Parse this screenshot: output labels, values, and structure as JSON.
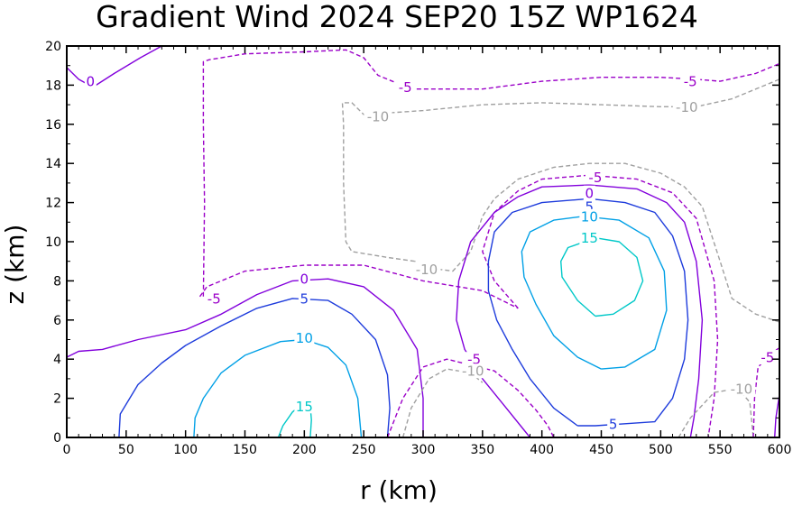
{
  "chart_data": {
    "type": "contour",
    "title": "Gradient Wind 2024 SEP20 15Z  WP1624",
    "xlabel": "r (km)",
    "ylabel": "z (km)",
    "xlim": [
      0,
      600
    ],
    "ylim": [
      0,
      20
    ],
    "x_ticks": [
      0,
      50,
      100,
      150,
      200,
      250,
      300,
      350,
      400,
      450,
      500,
      550,
      600
    ],
    "y_ticks": [
      0,
      2,
      4,
      6,
      8,
      10,
      12,
      14,
      16,
      18,
      20
    ],
    "grid": false,
    "levels": [
      {
        "value": -10,
        "label": "-10",
        "color": "#a0a0a0",
        "style": "dashed"
      },
      {
        "value": -5,
        "label": "-5",
        "color": "#9b00c8",
        "style": "dashed"
      },
      {
        "value": 0,
        "label": "0",
        "color": "#8200dc",
        "style": "solid"
      },
      {
        "value": 5,
        "label": "5",
        "color": "#1e3cdc",
        "style": "solid"
      },
      {
        "value": 10,
        "label": "10",
        "color": "#00a0e6",
        "style": "solid"
      },
      {
        "value": 15,
        "label": "15",
        "color": "#00c8c8",
        "style": "solid"
      }
    ],
    "contours": [
      {
        "level": 0,
        "points": [
          [
            0,
            18.9
          ],
          [
            10,
            18.3
          ],
          [
            22,
            17.9
          ],
          [
            40,
            18.6
          ],
          [
            62,
            19.4
          ],
          [
            80,
            20
          ]
        ]
      },
      {
        "level": -5,
        "points": [
          [
            115,
            7.2
          ],
          [
            116,
            12
          ],
          [
            115,
            16
          ],
          [
            115,
            19.2
          ],
          [
            120,
            19.3
          ],
          [
            150,
            19.6
          ],
          [
            200,
            19.7
          ],
          [
            235,
            19.8
          ],
          [
            250,
            19.4
          ],
          [
            262,
            18.5
          ],
          [
            290,
            17.8
          ],
          [
            350,
            17.8
          ],
          [
            400,
            18.2
          ],
          [
            450,
            18.4
          ],
          [
            500,
            18.4
          ],
          [
            530,
            18.3
          ],
          [
            550,
            18.2
          ],
          [
            580,
            18.6
          ],
          [
            600,
            19.1
          ]
        ]
      },
      {
        "level": -10,
        "points": [
          [
            293,
            9
          ],
          [
            270,
            9.2
          ],
          [
            240,
            9.5
          ],
          [
            235,
            10
          ],
          [
            233,
            13
          ],
          [
            233,
            16
          ],
          [
            232,
            17.1
          ],
          [
            240,
            17.1
          ],
          [
            250,
            16.5
          ],
          [
            300,
            16.7
          ],
          [
            350,
            17
          ],
          [
            400,
            17.1
          ],
          [
            450,
            17
          ],
          [
            500,
            16.9
          ],
          [
            530,
            16.9
          ],
          [
            560,
            17.3
          ],
          [
            600,
            18.3
          ]
        ]
      },
      {
        "level": -10,
        "points": [
          [
            600,
            5.9
          ],
          [
            580,
            6.3
          ],
          [
            560,
            7.1
          ],
          [
            550,
            9
          ],
          [
            535,
            11.8
          ],
          [
            520,
            12.8
          ],
          [
            500,
            13.5
          ],
          [
            470,
            14
          ],
          [
            440,
            14
          ],
          [
            410,
            13.8
          ],
          [
            380,
            13.2
          ],
          [
            360,
            12.2
          ],
          [
            350,
            11.3
          ],
          [
            340,
            9.5
          ],
          [
            325,
            8.5
          ],
          [
            300,
            8.7
          ],
          [
            293,
            9
          ]
        ]
      },
      {
        "level": -5,
        "points": [
          [
            112,
            7.2
          ],
          [
            118,
            7.7
          ],
          [
            150,
            8.5
          ],
          [
            200,
            8.8
          ],
          [
            250,
            8.8
          ],
          [
            300,
            8
          ],
          [
            350,
            7.5
          ],
          [
            380,
            6.6
          ]
        ]
      },
      {
        "level": -5,
        "points": [
          [
            380,
            6.6
          ],
          [
            360,
            8
          ],
          [
            350,
            9.5
          ],
          [
            360,
            11.5
          ],
          [
            380,
            12.6
          ],
          [
            400,
            13.2
          ],
          [
            440,
            13.4
          ],
          [
            480,
            13.2
          ],
          [
            510,
            12.5
          ],
          [
            530,
            11.2
          ],
          [
            545,
            8
          ],
          [
            548,
            5
          ],
          [
            545,
            2
          ],
          [
            540,
            0
          ]
        ]
      },
      {
        "level": 0,
        "points": [
          [
            0,
            4.1
          ],
          [
            10,
            4.4
          ],
          [
            30,
            4.5
          ],
          [
            60,
            5
          ],
          [
            100,
            5.5
          ],
          [
            130,
            6.3
          ],
          [
            160,
            7.3
          ],
          [
            190,
            8
          ],
          [
            220,
            8.1
          ],
          [
            250,
            7.7
          ],
          [
            275,
            6.5
          ],
          [
            295,
            4.5
          ],
          [
            300,
            2
          ],
          [
            300,
            0
          ]
        ]
      },
      {
        "level": 0,
        "points": [
          [
            390,
            0
          ],
          [
            370,
            1.5
          ],
          [
            350,
            3
          ],
          [
            335,
            4.5
          ],
          [
            328,
            6
          ],
          [
            330,
            8
          ],
          [
            340,
            10
          ],
          [
            360,
            11.5
          ],
          [
            380,
            12.3
          ],
          [
            400,
            12.8
          ],
          [
            440,
            12.9
          ],
          [
            480,
            12.7
          ],
          [
            505,
            12
          ],
          [
            520,
            11
          ],
          [
            530,
            9
          ],
          [
            535,
            6
          ],
          [
            532,
            3
          ],
          [
            528,
            1
          ],
          [
            525,
            0
          ]
        ]
      },
      {
        "level": 5,
        "points": [
          [
            44,
            0
          ],
          [
            45,
            1.2
          ],
          [
            60,
            2.7
          ],
          [
            80,
            3.8
          ],
          [
            100,
            4.7
          ],
          [
            130,
            5.7
          ],
          [
            160,
            6.6
          ],
          [
            190,
            7.1
          ],
          [
            220,
            7
          ],
          [
            240,
            6.3
          ],
          [
            260,
            5
          ],
          [
            270,
            3.2
          ],
          [
            272,
            1.5
          ],
          [
            270,
            0
          ]
        ]
      },
      {
        "level": 5,
        "points": [
          [
            430,
            0.6
          ],
          [
            410,
            1.5
          ],
          [
            390,
            3
          ],
          [
            375,
            4.5
          ],
          [
            362,
            6
          ],
          [
            355,
            7.5
          ],
          [
            355,
            9
          ],
          [
            360,
            10.5
          ],
          [
            375,
            11.5
          ],
          [
            400,
            12
          ],
          [
            440,
            12.2
          ],
          [
            470,
            12
          ],
          [
            495,
            11.5
          ],
          [
            510,
            10.3
          ],
          [
            520,
            8.5
          ],
          [
            523,
            6
          ],
          [
            520,
            4
          ],
          [
            510,
            2
          ],
          [
            495,
            0.8
          ],
          [
            470,
            0.7
          ],
          [
            445,
            0.6
          ],
          [
            430,
            0.6
          ]
        ]
      },
      {
        "level": 10,
        "points": [
          [
            107,
            0
          ],
          [
            108,
            1
          ],
          [
            115,
            2
          ],
          [
            130,
            3.3
          ],
          [
            150,
            4.2
          ],
          [
            180,
            4.9
          ],
          [
            200,
            5
          ],
          [
            220,
            4.6
          ],
          [
            235,
            3.7
          ],
          [
            245,
            2
          ],
          [
            248,
            0
          ]
        ]
      },
      {
        "level": 10,
        "points": [
          [
            450,
            3.5
          ],
          [
            430,
            4.1
          ],
          [
            410,
            5.2
          ],
          [
            395,
            6.8
          ],
          [
            385,
            8.2
          ],
          [
            383,
            9.5
          ],
          [
            390,
            10.5
          ],
          [
            410,
            11.1
          ],
          [
            435,
            11.3
          ],
          [
            465,
            11.1
          ],
          [
            490,
            10.2
          ],
          [
            503,
            8.5
          ],
          [
            505,
            6.5
          ],
          [
            495,
            4.5
          ],
          [
            470,
            3.6
          ],
          [
            450,
            3.5
          ]
        ]
      },
      {
        "level": 15,
        "points": [
          [
            178,
            0
          ],
          [
            182,
            0.6
          ],
          [
            190,
            1.3
          ],
          [
            200,
            1.8
          ],
          [
            205,
            1.6
          ],
          [
            206,
            0.9
          ],
          [
            205,
            0
          ]
        ]
      },
      {
        "level": 15,
        "points": [
          [
            445,
            6.2
          ],
          [
            430,
            7
          ],
          [
            417,
            8.2
          ],
          [
            416,
            9
          ],
          [
            422,
            9.7
          ],
          [
            445,
            10.2
          ],
          [
            465,
            10
          ],
          [
            480,
            9.2
          ],
          [
            485,
            8
          ],
          [
            478,
            7
          ],
          [
            460,
            6.3
          ],
          [
            445,
            6.2
          ]
        ]
      },
      {
        "level": -5,
        "points": [
          [
            270,
            0
          ],
          [
            283,
            2
          ],
          [
            300,
            3.6
          ],
          [
            320,
            4
          ],
          [
            340,
            3.7
          ],
          [
            360,
            3.4
          ],
          [
            380,
            2.4
          ],
          [
            395,
            1.4
          ],
          [
            405,
            0.6
          ],
          [
            410,
            0
          ]
        ]
      },
      {
        "level": -10,
        "points": [
          [
            283,
            0
          ],
          [
            290,
            1.5
          ],
          [
            305,
            3
          ],
          [
            320,
            3.5
          ],
          [
            340,
            3.3
          ],
          [
            350,
            2.8
          ]
        ]
      },
      {
        "level": -10,
        "points": [
          [
            515,
            0
          ],
          [
            525,
            1
          ],
          [
            545,
            2.3
          ],
          [
            565,
            2.5
          ],
          [
            575,
            1.8
          ],
          [
            578,
            0
          ]
        ]
      },
      {
        "level": -5,
        "points": [
          [
            578,
            0
          ],
          [
            579,
            2
          ],
          [
            582,
            3.6
          ],
          [
            592,
            4.2
          ],
          [
            600,
            4.6
          ]
        ]
      },
      {
        "level": 0,
        "points": [
          [
            596,
            0
          ],
          [
            597,
            1
          ],
          [
            600,
            2.2
          ]
        ]
      }
    ],
    "contour_labels": [
      {
        "text": "0",
        "level": 0,
        "x": 20,
        "y": 18.2
      },
      {
        "text": "-5",
        "level": -5,
        "x": 285,
        "y": 17.9
      },
      {
        "text": "-5",
        "level": -5,
        "x": 525,
        "y": 18.2
      },
      {
        "text": "-10",
        "level": -10,
        "x": 262,
        "y": 16.4
      },
      {
        "text": "-10",
        "level": -10,
        "x": 522,
        "y": 16.9
      },
      {
        "text": "-10",
        "level": -10,
        "x": 303,
        "y": 8.6
      },
      {
        "text": "-5",
        "level": -5,
        "x": 124,
        "y": 7.1
      },
      {
        "text": "0",
        "level": 0,
        "x": 200,
        "y": 8.1
      },
      {
        "text": "5",
        "level": 5,
        "x": 200,
        "y": 7.1
      },
      {
        "text": "10",
        "level": 10,
        "x": 200,
        "y": 5.1
      },
      {
        "text": "15",
        "level": 15,
        "x": 200,
        "y": 1.6
      },
      {
        "text": "-5",
        "level": -5,
        "x": 445,
        "y": 13.3
      },
      {
        "text": "0",
        "level": 0,
        "x": 440,
        "y": 12.5
      },
      {
        "text": "5",
        "level": 5,
        "x": 440,
        "y": 11.8
      },
      {
        "text": "10",
        "level": 10,
        "x": 440,
        "y": 11.3
      },
      {
        "text": "15",
        "level": 15,
        "x": 440,
        "y": 10.2
      },
      {
        "text": "5",
        "level": 5,
        "x": 460,
        "y": 0.7
      },
      {
        "text": "-5",
        "level": -5,
        "x": 343,
        "y": 4
      },
      {
        "text": "-10",
        "level": -10,
        "x": 342,
        "y": 3.4
      },
      {
        "text": "-10",
        "level": -10,
        "x": 568,
        "y": 2.5
      },
      {
        "text": "-5",
        "level": -5,
        "x": 590,
        "y": 4.1
      }
    ]
  }
}
